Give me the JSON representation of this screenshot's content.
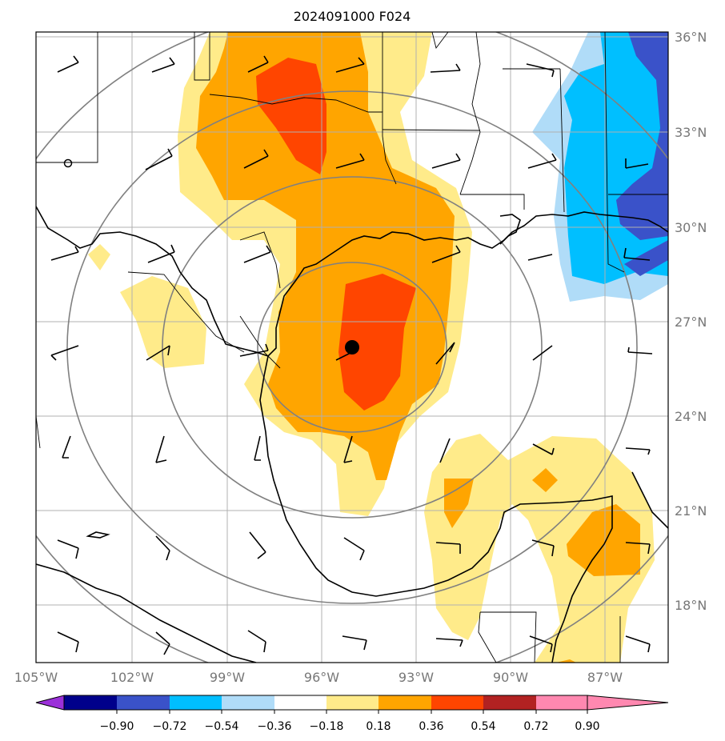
{
  "title": "2024091000 F024",
  "lon_labels": [
    "105°W",
    "102°W",
    "99°W",
    "96°W",
    "93°W",
    "90°W",
    "87°W"
  ],
  "lat_labels": [
    "36°N",
    "33°N",
    "30°N",
    "27°N",
    "24°N",
    "21°N",
    "18°N"
  ],
  "colorbar": {
    "ticks": [
      "−0.90",
      "−0.72",
      "−0.54",
      "−0.36",
      "−0.18",
      "0.18",
      "0.36",
      "0.54",
      "0.72",
      "0.90"
    ],
    "colors": [
      "#9b30d9",
      "#00008b",
      "#3a52c9",
      "#00bfff",
      "#b0dcf8",
      "#ffffff",
      "#ffeb8a",
      "#ffa500",
      "#ff4500",
      "#b22222",
      "#ff88b0"
    ]
  },
  "map_extent": {
    "lon": [
      -105,
      -85
    ],
    "lat": [
      16,
      36
    ]
  },
  "storm_center": {
    "lon": -94.9,
    "lat": 26.2
  },
  "colors": {
    "grid": "#b0b0b0",
    "range_rings": "#808080",
    "coast": "#000000"
  }
}
